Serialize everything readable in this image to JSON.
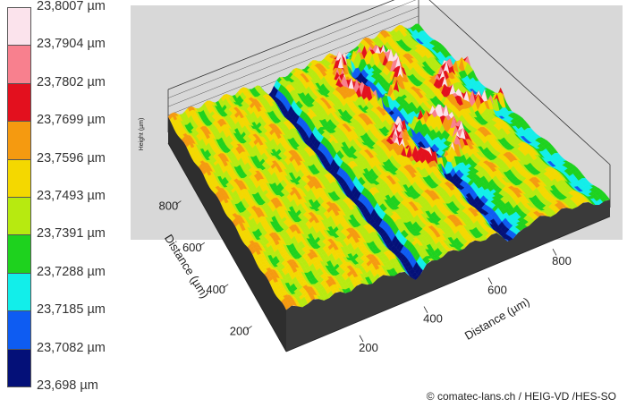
{
  "chart_data": {
    "type": "surface3d",
    "title": "",
    "colorbar": {
      "ticks": [
        "23,8007 µm",
        "23,7904 µm",
        "23,7802 µm",
        "23,7699 µm",
        "23,7596 µm",
        "23,7493 µm",
        "23,7391 µm",
        "23,7288 µm",
        "23,7185 µm",
        "23,7082 µm",
        "23,698 µm"
      ],
      "colors": [
        "#fbe3ec",
        "#f8808e",
        "#e3101e",
        "#f59a10",
        "#f4d800",
        "#b7ea10",
        "#1ed21e",
        "#12eeea",
        "#0e5cf2",
        "#041078"
      ]
    },
    "axes": {
      "x_label": "Distance (µm)",
      "x_ticks": [
        200,
        400,
        600,
        800
      ],
      "x_range": [
        0,
        1000
      ],
      "y_label": "Distance (µm)",
      "y_ticks": [
        200,
        400,
        600,
        800
      ],
      "y_range": [
        0,
        1000
      ],
      "z_label": "Height (µm)",
      "z_range": [
        23.698,
        23.8007
      ]
    },
    "surface": {
      "stripes": 3,
      "grooves": 2,
      "rings": [
        {
          "x": 150,
          "y": 700
        },
        {
          "x": 500,
          "y": 700
        },
        {
          "x": 350,
          "y": 960
        }
      ]
    }
  },
  "footer": {
    "credit": "© comatec-lans.ch / HEIG-VD /HES-SO"
  }
}
